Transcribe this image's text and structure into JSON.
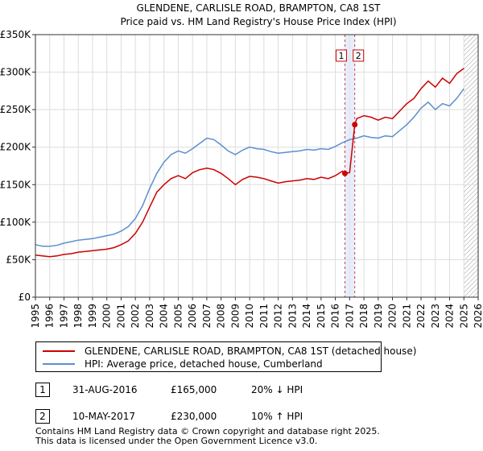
{
  "chart_data": {
    "type": "line",
    "title": "GLENDENE, CARLISLE ROAD, BRAMPTON, CA8 1ST",
    "subtitle": "Price paid vs. HM Land Registry's House Price Index (HPI)",
    "xlim": [
      1995,
      2026
    ],
    "ylim": [
      0,
      350000
    ],
    "x_ticks": [
      1995,
      1996,
      1997,
      1998,
      1999,
      2000,
      2001,
      2002,
      2003,
      2004,
      2005,
      2006,
      2007,
      2008,
      2009,
      2010,
      2011,
      2012,
      2013,
      2014,
      2015,
      2016,
      2017,
      2018,
      2019,
      2020,
      2021,
      2022,
      2023,
      2024,
      2025,
      2026
    ],
    "y_ticks": [
      0,
      50000,
      100000,
      150000,
      200000,
      250000,
      300000,
      350000
    ],
    "y_tick_labels": [
      "£0",
      "£50K",
      "£100K",
      "£150K",
      "£200K",
      "£250K",
      "£300K",
      "£350K"
    ],
    "hatch_start": 2025.0,
    "series": [
      {
        "name": "GLENDENE, CARLISLE ROAD, BRAMPTON, CA8 1ST (detached house)",
        "color": "#cc0000",
        "x": [
          1995.0,
          1995.5,
          1996.0,
          1996.5,
          1997.0,
          1997.5,
          1998.0,
          1998.5,
          1999.0,
          1999.5,
          2000.0,
          2000.5,
          2001.0,
          2001.5,
          2002.0,
          2002.5,
          2003.0,
          2003.5,
          2004.0,
          2004.5,
          2005.0,
          2005.5,
          2006.0,
          2006.5,
          2007.0,
          2007.5,
          2008.0,
          2008.5,
          2009.0,
          2009.5,
          2010.0,
          2010.5,
          2011.0,
          2011.5,
          2012.0,
          2012.5,
          2013.0,
          2013.5,
          2014.0,
          2014.5,
          2015.0,
          2015.5,
          2016.0,
          2016.5,
          2016.67,
          2017.0,
          2017.36,
          2017.5,
          2018.0,
          2018.5,
          2019.0,
          2019.5,
          2020.0,
          2020.5,
          2021.0,
          2021.5,
          2022.0,
          2022.5,
          2023.0,
          2023.5,
          2024.0,
          2024.5,
          2025.0
        ],
        "values": [
          56000,
          55000,
          54000,
          55000,
          57000,
          58000,
          60000,
          61000,
          62000,
          63000,
          64000,
          66000,
          70000,
          75000,
          85000,
          100000,
          120000,
          140000,
          150000,
          158000,
          162000,
          158000,
          166000,
          170000,
          172000,
          170000,
          165000,
          158000,
          150000,
          157000,
          161000,
          160000,
          158000,
          155000,
          152000,
          154000,
          155000,
          156000,
          158000,
          157000,
          160000,
          158000,
          162000,
          168000,
          165000,
          166000,
          230000,
          238000,
          242000,
          240000,
          236000,
          240000,
          238000,
          248000,
          258000,
          265000,
          278000,
          288000,
          280000,
          292000,
          285000,
          298000,
          305000
        ]
      },
      {
        "name": "HPI: Average price, detached house, Cumberland",
        "color": "#5b8fcf",
        "x": [
          1995.0,
          1995.5,
          1996.0,
          1996.5,
          1997.0,
          1997.5,
          1998.0,
          1998.5,
          1999.0,
          1999.5,
          2000.0,
          2000.5,
          2001.0,
          2001.5,
          2002.0,
          2002.5,
          2003.0,
          2003.5,
          2004.0,
          2004.5,
          2005.0,
          2005.5,
          2006.0,
          2006.5,
          2007.0,
          2007.5,
          2008.0,
          2008.5,
          2009.0,
          2009.5,
          2010.0,
          2010.5,
          2011.0,
          2011.5,
          2012.0,
          2012.5,
          2013.0,
          2013.5,
          2014.0,
          2014.5,
          2015.0,
          2015.5,
          2016.0,
          2016.5,
          2017.0,
          2017.5,
          2018.0,
          2018.5,
          2019.0,
          2019.5,
          2020.0,
          2020.5,
          2021.0,
          2021.5,
          2022.0,
          2022.5,
          2023.0,
          2023.5,
          2024.0,
          2024.5,
          2025.0
        ],
        "values": [
          70000,
          68000,
          68000,
          69000,
          72000,
          74000,
          76000,
          77000,
          78000,
          80000,
          82000,
          84000,
          88000,
          94000,
          105000,
          122000,
          145000,
          165000,
          180000,
          190000,
          195000,
          192000,
          198000,
          205000,
          212000,
          210000,
          203000,
          195000,
          190000,
          196000,
          200000,
          198000,
          197000,
          194000,
          192000,
          193000,
          194000,
          195000,
          197000,
          196000,
          198000,
          197000,
          201000,
          206000,
          210000,
          212000,
          215000,
          213000,
          212000,
          215000,
          214000,
          222000,
          230000,
          240000,
          252000,
          260000,
          250000,
          258000,
          255000,
          265000,
          278000
        ]
      }
    ],
    "sales": [
      {
        "label": "1",
        "x": 2016.67,
        "value": 165000
      },
      {
        "label": "2",
        "x": 2017.36,
        "value": 230000
      }
    ]
  },
  "legend": {
    "property_label": "GLENDENE, CARLISLE ROAD, BRAMPTON, CA8 1ST (detached house)",
    "hpi_label": "HPI: Average price, detached house, Cumberland"
  },
  "sales_table": [
    {
      "num": "1",
      "date": "31-AUG-2016",
      "price": "£165,000",
      "hpi": "20% ↓ HPI"
    },
    {
      "num": "2",
      "date": "10-MAY-2017",
      "price": "£230,000",
      "hpi": "10% ↑ HPI"
    }
  ],
  "footer": {
    "line1": "Contains HM Land Registry data © Crown copyright and database right 2025.",
    "line2": "This data is licensed under the Open Government Licence v3.0."
  }
}
